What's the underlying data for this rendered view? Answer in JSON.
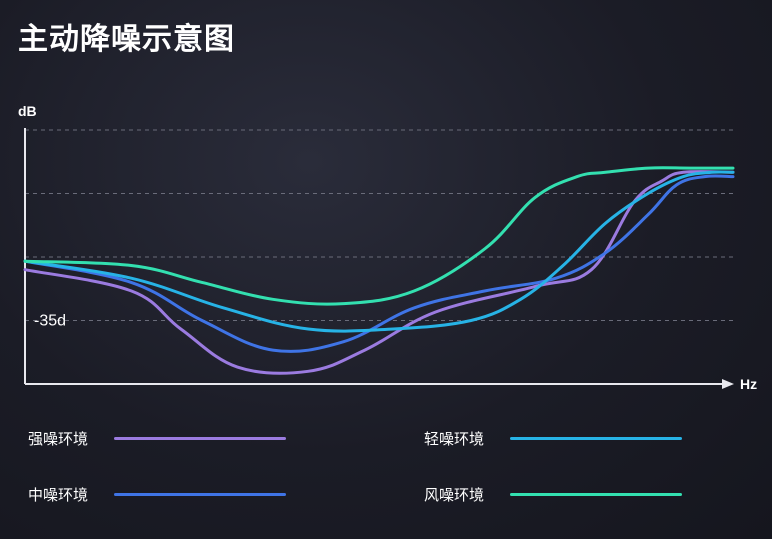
{
  "title": "主动降噪示意图",
  "chart_data": {
    "type": "line",
    "title": "主动降噪示意图",
    "ylabel": "dB",
    "xlabel": "Hz",
    "y_tick_labels": [
      {
        "value": -35,
        "label": "-35d"
      }
    ],
    "grid": "dashed horizontal",
    "ylim": [
      -50,
      10
    ],
    "xlim": [
      0,
      100
    ],
    "series": [
      {
        "name": "强噪环境",
        "color": "#9b7be0",
        "x": [
          0,
          15,
          22,
          30,
          40,
          48,
          58,
          72,
          80,
          86,
          90,
          93,
          100
        ],
        "y": [
          -23,
          -28,
          -37,
          -46,
          -47,
          -42,
          -33,
          -27,
          -23,
          -7,
          -2,
          0,
          0
        ]
      },
      {
        "name": "中噪环境",
        "color": "#3f74e6",
        "x": [
          0,
          15,
          25,
          35,
          45,
          55,
          65,
          75,
          82,
          88,
          92,
          96,
          100
        ],
        "y": [
          -21,
          -26,
          -35,
          -42,
          -40,
          -32,
          -28,
          -25,
          -19,
          -10,
          -3,
          -1,
          -1
        ]
      },
      {
        "name": "轻噪环境",
        "color": "#27b3e6",
        "x": [
          0,
          15,
          28,
          40,
          52,
          63,
          70,
          76,
          82,
          88,
          93,
          97,
          100
        ],
        "y": [
          -21,
          -25,
          -32,
          -37,
          -37,
          -35,
          -30,
          -22,
          -12,
          -5,
          -1,
          0,
          0
        ]
      },
      {
        "name": "风噪环境",
        "color": "#33e0b0",
        "x": [
          0,
          15,
          25,
          35,
          45,
          55,
          65,
          72,
          78,
          82,
          88,
          94,
          100
        ],
        "y": [
          -21,
          -22,
          -26,
          -30,
          -31,
          -28,
          -18,
          -6,
          -1,
          0,
          1,
          1,
          1
        ]
      }
    ]
  },
  "legend": {
    "strong": "强噪环境",
    "light": "轻噪环境",
    "medium": "中噪环境",
    "wind": "风噪环境"
  }
}
